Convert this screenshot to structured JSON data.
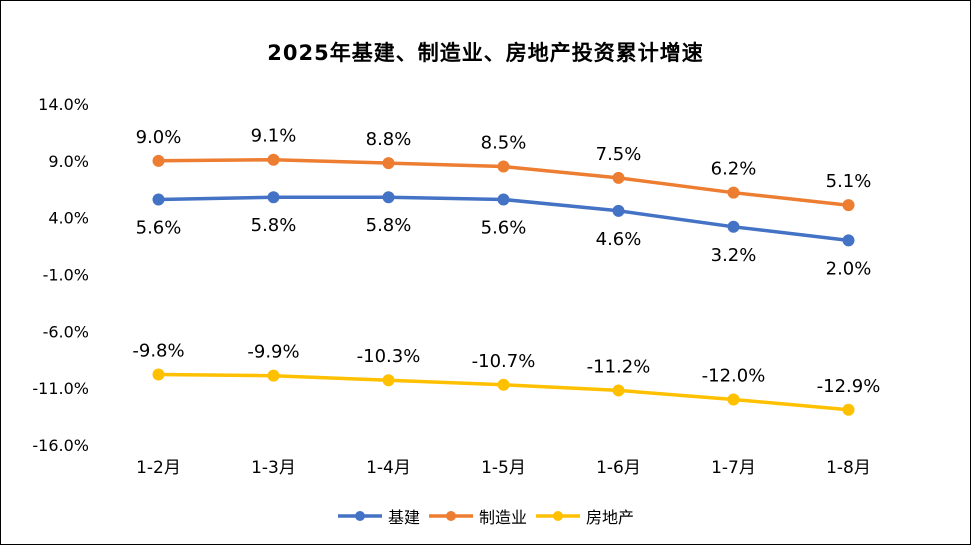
{
  "chart_data": {
    "type": "line",
    "title": "2025年基建、制造业、房地产投资累计增速",
    "categories": [
      "1-2月",
      "1-3月",
      "1-4月",
      "1-5月",
      "1-6月",
      "1-7月",
      "1-8月"
    ],
    "series": [
      {
        "id": "infrastructure",
        "name": "基建",
        "color": "#4472C4",
        "values": [
          5.6,
          5.8,
          5.8,
          5.6,
          4.6,
          3.2,
          2.0
        ],
        "label_position": "below"
      },
      {
        "id": "manufacturing",
        "name": "制造业",
        "color": "#ED7D31",
        "values": [
          9.0,
          9.1,
          8.8,
          8.5,
          7.5,
          6.2,
          5.1
        ],
        "label_position": "above"
      },
      {
        "id": "real-estate",
        "name": "房地产",
        "color": "#FFC000",
        "values": [
          -9.8,
          -9.9,
          -10.3,
          -10.7,
          -11.2,
          -12.0,
          -12.9
        ],
        "label_position": "above"
      }
    ],
    "y_ticks": [
      14.0,
      9.0,
      4.0,
      -1.0,
      -6.0,
      -11.0,
      -16.0
    ],
    "y_tick_labels": [
      "14.0%",
      "9.0%",
      "4.0%",
      "-1.0%",
      "-6.0%",
      "-11.0%",
      "-16.0%"
    ],
    "data_label_format": "0.0%",
    "ylim": [
      -16,
      14
    ],
    "grid": false,
    "legend_position": "bottom"
  }
}
